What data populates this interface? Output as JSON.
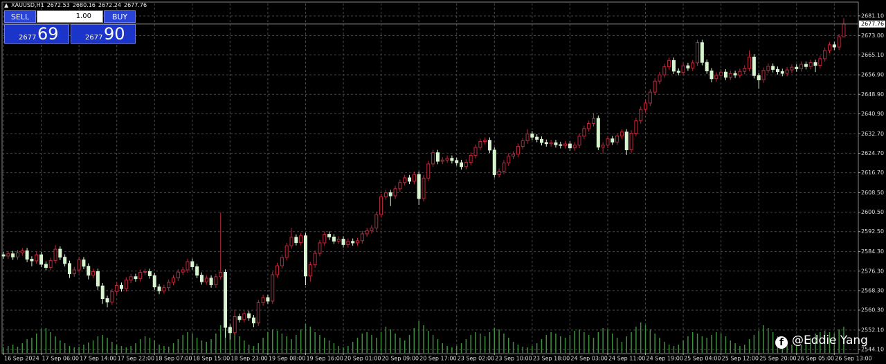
{
  "chart_data": {
    "type": "candlestick",
    "symbol": "XAUUSD,H1",
    "categories": [
      "16 Sep 2024",
      null,
      null,
      null,
      null,
      null,
      null,
      null,
      "17 Sep 06:00",
      null,
      null,
      null,
      null,
      null,
      null,
      null,
      "17 Sep 14:00",
      null,
      null,
      null,
      null,
      null,
      null,
      null,
      "17 Sep 22:00",
      null,
      null,
      null,
      null,
      null,
      null,
      null,
      "18 Sep 07:00",
      null,
      null,
      null,
      null,
      null,
      null,
      null,
      "18 Sep 15:00",
      null,
      null,
      null,
      null,
      null,
      null,
      null,
      "18 Sep 23:00",
      null,
      null,
      null,
      null,
      null,
      null,
      null,
      "19 Sep 08:00",
      null,
      null,
      null,
      null,
      null,
      null,
      null,
      "19 Sep 16:00",
      null,
      null,
      null,
      null,
      null,
      null,
      null,
      "20 Sep 01:00",
      null,
      null,
      null,
      null,
      null,
      null,
      null,
      "20 Sep 09:00",
      null,
      null,
      null,
      null,
      null,
      null,
      null,
      "20 Sep 17:00",
      null,
      null,
      null,
      null,
      null,
      null,
      null,
      "23 Sep 02:00",
      null,
      null,
      null,
      null,
      null,
      null,
      null,
      "23 Sep 10:00",
      null,
      null,
      null,
      null,
      null,
      null,
      null,
      "23 Sep 18:00",
      null,
      null,
      null,
      null,
      null,
      null,
      null,
      "24 Sep 03:00",
      null,
      null,
      null,
      null,
      null,
      null,
      null,
      "24 Sep 11:00",
      null,
      null,
      null,
      null,
      null,
      null,
      null,
      "24 Sep 19:00",
      null,
      null,
      null,
      null,
      null,
      null,
      null,
      "25 Sep 04:00",
      null,
      null,
      null,
      null,
      null,
      null,
      null,
      "25 Sep 12:00",
      null,
      null,
      null,
      null,
      null,
      null,
      null,
      "25 Sep 20:00",
      null,
      null,
      null,
      null,
      null,
      null,
      null,
      "26 Sep 05:00",
      null,
      null,
      null,
      null,
      null,
      null,
      null,
      "26 Sep 13:00",
      null,
      null
    ],
    "open": [
      2583.0,
      2582.5,
      2583.4,
      2582.1,
      2583.8,
      2584.6,
      2581.2,
      2580.5,
      2583.0,
      2579.1,
      2577.8,
      2580.6,
      2585.3,
      2582.0,
      2579.4,
      2575.2,
      2576.8,
      2580.9,
      2578.3,
      2574.6,
      2576.1,
      2570.2,
      2565.0,
      2563.6,
      2567.9,
      2570.4,
      2569.1,
      2572.6,
      2574.0,
      2573.2,
      2575.8,
      2576.1,
      2574.4,
      2569.8,
      2568.2,
      2569.5,
      2571.7,
      2573.5,
      2575.9,
      2576.8,
      2580.2,
      2578.1,
      2574.6,
      2571.9,
      2573.4,
      2570.7,
      2574.0,
      2575.8,
      2553.2,
      2551.0,
      2557.6,
      2556.4,
      2558.8,
      2557.1,
      2555.0,
      2563.3,
      2565.4,
      2564.0,
      2574.8,
      2578.5,
      2581.9,
      2586.7,
      2590.2,
      2588.0,
      2590.8,
      2574.3,
      2578.9,
      2583.6,
      2587.9,
      2591.4,
      2590.3,
      2588.6,
      2589.4,
      2587.2,
      2588.5,
      2587.9,
      2588.8,
      2591.6,
      2592.9,
      2594.0,
      2599.5,
      2606.8,
      2608.5,
      2607.2,
      2610.1,
      2612.7,
      2614.6,
      2613.2,
      2616.0,
      2606.1,
      2614.5,
      2620.3,
      2624.9,
      2621.4,
      2621.9,
      2622.6,
      2621.7,
      2620.8,
      2619.2,
      2621.0,
      2623.8,
      2627.1,
      2629.5,
      2630.0,
      2626.0,
      2615.9,
      2617.3,
      2620.7,
      2623.5,
      2624.3,
      2627.5,
      2629.8,
      2632.6,
      2631.3,
      2630.4,
      2629.1,
      2628.6,
      2629.0,
      2628.2,
      2627.9,
      2628.5,
      2626.9,
      2628.0,
      2631.7,
      2634.8,
      2636.9,
      2639.0,
      2627.2,
      2628.0,
      2630.6,
      2629.3,
      2631.8,
      2633.4,
      2626.1,
      2632.9,
      2638.0,
      2642.7,
      2645.3,
      2649.8,
      2654.3,
      2656.9,
      2660.2,
      2662.8,
      2658.4,
      2657.9,
      2660.6,
      2659.7,
      2661.8,
      2670.1,
      2662.0,
      2658.5,
      2655.3,
      2656.7,
      2658.0,
      2655.9,
      2657.4,
      2656.8,
      2658.3,
      2659.6,
      2664.2,
      2656.6,
      2654.8,
      2658.7,
      2660.4,
      2659.1,
      2658.2,
      2657.5,
      2658.9,
      2660.0,
      2659.4,
      2661.2,
      2660.3,
      2661.9,
      2660.8,
      2663.5,
      2666.9,
      2669.2,
      2668.3,
      2672.53
    ],
    "high": [
      2584.2,
      2584.6,
      2584.6,
      2585.0,
      2585.8,
      2585.8,
      2582.4,
      2584.2,
      2584.2,
      2580.3,
      2581.8,
      2587.0,
      2586.5,
      2583.2,
      2580.6,
      2578.0,
      2582.1,
      2582.1,
      2579.5,
      2577.3,
      2577.3,
      2571.4,
      2566.2,
      2569.1,
      2571.6,
      2571.6,
      2573.8,
      2575.2,
      2575.2,
      2577.0,
      2577.3,
      2577.3,
      2575.6,
      2571.0,
      2570.7,
      2572.9,
      2574.7,
      2577.1,
      2578.0,
      2581.4,
      2581.4,
      2579.3,
      2575.8,
      2574.6,
      2574.6,
      2575.2,
      2600.4,
      2577.0,
      2554.4,
      2560.5,
      2558.8,
      2560.0,
      2560.0,
      2558.3,
      2564.5,
      2566.6,
      2566.6,
      2576.0,
      2579.7,
      2583.1,
      2587.9,
      2594.0,
      2591.4,
      2592.0,
      2592.0,
      2580.1,
      2584.8,
      2589.1,
      2592.6,
      2592.6,
      2591.5,
      2590.6,
      2590.6,
      2589.7,
      2589.7,
      2590.0,
      2592.8,
      2594.1,
      2595.2,
      2600.7,
      2608.0,
      2609.7,
      2609.7,
      2611.3,
      2613.9,
      2615.8,
      2615.8,
      2617.2,
      2617.2,
      2615.7,
      2621.5,
      2626.1,
      2626.1,
      2623.1,
      2623.8,
      2623.8,
      2622.9,
      2622.0,
      2622.2,
      2625.0,
      2628.3,
      2630.7,
      2631.2,
      2631.2,
      2627.2,
      2618.5,
      2621.9,
      2624.7,
      2625.5,
      2628.7,
      2631.0,
      2634.6,
      2633.8,
      2632.5,
      2631.6,
      2630.3,
      2630.2,
      2630.2,
      2629.4,
      2629.7,
      2629.7,
      2629.2,
      2632.9,
      2636.0,
      2638.1,
      2641.3,
      2640.2,
      2629.2,
      2631.8,
      2631.8,
      2633.0,
      2634.6,
      2634.6,
      2634.1,
      2639.2,
      2643.9,
      2646.5,
      2651.0,
      2655.5,
      2658.1,
      2661.4,
      2664.0,
      2664.0,
      2659.6,
      2661.8,
      2661.8,
      2663.0,
      2671.3,
      2671.3,
      2663.2,
      2659.7,
      2657.9,
      2659.2,
      2659.2,
      2658.6,
      2658.6,
      2659.5,
      2660.8,
      2666.9,
      2665.4,
      2657.8,
      2659.9,
      2661.6,
      2661.6,
      2660.3,
      2659.4,
      2660.1,
      2661.2,
      2661.2,
      2662.4,
      2662.4,
      2663.1,
      2663.1,
      2664.7,
      2668.1,
      2670.4,
      2670.4,
      2673.7,
      2680.16
    ],
    "low": [
      2581.3,
      2581.3,
      2580.9,
      2580.9,
      2582.6,
      2580.0,
      2578.3,
      2579.3,
      2577.9,
      2576.6,
      2576.6,
      2579.4,
      2580.8,
      2578.2,
      2573.5,
      2574.0,
      2575.6,
      2577.1,
      2572.9,
      2573.4,
      2568.5,
      2562.8,
      2561.4,
      2562.4,
      2566.7,
      2567.9,
      2567.9,
      2571.4,
      2572.0,
      2572.0,
      2574.6,
      2573.2,
      2568.6,
      2566.8,
      2567.0,
      2568.3,
      2570.5,
      2572.3,
      2574.7,
      2575.6,
      2576.9,
      2573.4,
      2570.7,
      2570.7,
      2569.5,
      2569.5,
      2572.8,
      2549.0,
      2548.2,
      2549.8,
      2555.2,
      2555.2,
      2555.9,
      2553.2,
      2553.8,
      2562.1,
      2562.8,
      2562.8,
      2573.6,
      2577.3,
      2580.7,
      2585.5,
      2586.8,
      2586.8,
      2570.5,
      2572.0,
      2577.7,
      2582.4,
      2586.7,
      2589.1,
      2587.4,
      2587.4,
      2586.0,
      2586.0,
      2586.7,
      2586.7,
      2587.6,
      2590.4,
      2591.7,
      2592.8,
      2598.3,
      2605.6,
      2603.0,
      2606.0,
      2608.9,
      2611.5,
      2612.0,
      2612.0,
      2603.5,
      2604.9,
      2613.3,
      2619.1,
      2620.2,
      2620.2,
      2620.7,
      2620.5,
      2619.6,
      2618.0,
      2618.0,
      2619.8,
      2622.6,
      2625.9,
      2628.3,
      2624.8,
      2614.7,
      2614.7,
      2616.1,
      2619.5,
      2622.3,
      2623.1,
      2626.3,
      2628.6,
      2630.1,
      2629.2,
      2627.9,
      2627.4,
      2627.4,
      2627.0,
      2626.7,
      2626.7,
      2625.7,
      2625.7,
      2626.8,
      2630.5,
      2633.6,
      2635.7,
      2626.0,
      2624.5,
      2626.8,
      2628.1,
      2628.1,
      2630.6,
      2624.0,
      2624.9,
      2631.7,
      2636.8,
      2641.5,
      2644.1,
      2648.6,
      2653.1,
      2655.7,
      2659.0,
      2657.2,
      2656.7,
      2656.7,
      2658.5,
      2658.5,
      2660.6,
      2660.8,
      2657.3,
      2653.8,
      2654.1,
      2655.5,
      2654.7,
      2654.7,
      2655.6,
      2655.6,
      2657.1,
      2658.4,
      2655.4,
      2651.2,
      2653.6,
      2657.5,
      2657.9,
      2657.0,
      2656.3,
      2656.3,
      2657.7,
      2658.2,
      2658.2,
      2659.1,
      2659.1,
      2658.0,
      2659.6,
      2662.3,
      2665.7,
      2667.1,
      2667.1,
      2672.24
    ],
    "close": [
      2582.5,
      2583.4,
      2582.1,
      2583.8,
      2584.6,
      2581.2,
      2580.5,
      2583.0,
      2579.1,
      2577.8,
      2580.6,
      2585.3,
      2582.0,
      2579.4,
      2575.2,
      2576.8,
      2580.9,
      2578.3,
      2574.6,
      2576.1,
      2570.2,
      2565.0,
      2563.6,
      2567.9,
      2570.4,
      2569.1,
      2572.6,
      2574.0,
      2573.2,
      2575.8,
      2576.1,
      2574.4,
      2569.8,
      2568.2,
      2569.5,
      2571.7,
      2573.5,
      2575.9,
      2576.8,
      2580.2,
      2578.1,
      2574.6,
      2571.9,
      2573.4,
      2570.7,
      2574.0,
      2575.8,
      2553.2,
      2551.0,
      2557.6,
      2556.4,
      2558.8,
      2557.1,
      2555.0,
      2563.3,
      2565.4,
      2564.0,
      2574.8,
      2578.5,
      2581.9,
      2586.7,
      2590.2,
      2588.0,
      2590.8,
      2574.3,
      2578.9,
      2583.6,
      2587.9,
      2591.4,
      2590.3,
      2588.6,
      2589.4,
      2587.2,
      2588.5,
      2587.9,
      2588.8,
      2591.6,
      2592.9,
      2594.0,
      2599.5,
      2606.8,
      2608.5,
      2607.2,
      2610.1,
      2612.7,
      2614.6,
      2613.2,
      2616.0,
      2606.1,
      2614.5,
      2620.3,
      2624.9,
      2621.4,
      2621.9,
      2622.6,
      2621.7,
      2620.8,
      2619.2,
      2621.0,
      2623.8,
      2627.1,
      2629.5,
      2630.0,
      2626.0,
      2615.9,
      2617.3,
      2620.7,
      2623.5,
      2624.3,
      2627.5,
      2629.8,
      2632.6,
      2631.3,
      2630.4,
      2629.1,
      2628.6,
      2629.0,
      2628.2,
      2627.9,
      2628.5,
      2626.9,
      2628.0,
      2631.7,
      2634.8,
      2636.9,
      2639.0,
      2627.2,
      2628.0,
      2630.6,
      2629.3,
      2631.8,
      2633.4,
      2626.1,
      2632.9,
      2638.0,
      2642.7,
      2645.3,
      2649.8,
      2654.3,
      2656.9,
      2660.2,
      2662.8,
      2658.4,
      2657.9,
      2660.6,
      2659.7,
      2661.8,
      2670.1,
      2662.0,
      2658.5,
      2655.3,
      2656.7,
      2658.0,
      2655.9,
      2657.4,
      2656.8,
      2658.3,
      2659.6,
      2664.2,
      2656.6,
      2654.8,
      2658.7,
      2660.4,
      2659.1,
      2658.2,
      2657.5,
      2658.9,
      2660.0,
      2659.4,
      2661.2,
      2660.3,
      2661.9,
      2660.8,
      2663.5,
      2666.9,
      2669.2,
      2668.3,
      2672.53,
      2677.76
    ],
    "volume": [
      8,
      10,
      12,
      9,
      14,
      20,
      22,
      28,
      35,
      36,
      30,
      24,
      18,
      14,
      10,
      8,
      9,
      12,
      15,
      18,
      24,
      26,
      22,
      16,
      12,
      10,
      8,
      10,
      14,
      20,
      24,
      22,
      18,
      12,
      10,
      9,
      14,
      20,
      26,
      30,
      28,
      22,
      18,
      16,
      20,
      28,
      40,
      44,
      38,
      30,
      24,
      18,
      12,
      10,
      14,
      22,
      30,
      34,
      32,
      28,
      24,
      20,
      26,
      34,
      42,
      38,
      30,
      26,
      22,
      18,
      14,
      10,
      8,
      10,
      16,
      22,
      28,
      30,
      26,
      22,
      30,
      38,
      34,
      28,
      22,
      18,
      26,
      36,
      46,
      40,
      32,
      26,
      20,
      14,
      10,
      8,
      10,
      14,
      20,
      26,
      30,
      28,
      24,
      30,
      36,
      34,
      28,
      22,
      16,
      12,
      9,
      8,
      10,
      14,
      20,
      26,
      30,
      28,
      24,
      22,
      26,
      32,
      34,
      30,
      26,
      22,
      30,
      36,
      34,
      28,
      22,
      16,
      24,
      30,
      38,
      44,
      40,
      34,
      28,
      22,
      16,
      12,
      10,
      12,
      18,
      24,
      30,
      28,
      24,
      22,
      26,
      30,
      28,
      24,
      18,
      14,
      10,
      12,
      20,
      26,
      32,
      40,
      36,
      30,
      24,
      20,
      16,
      12,
      10,
      12,
      16,
      22,
      28,
      30,
      32,
      30,
      28,
      34,
      38
    ],
    "bull_color": "#c0283c",
    "bear_color": "#d8f5d0",
    "volume_color": "#3f8f3f",
    "ylim": [
      2542.7,
      2686.2
    ],
    "yticks": [
      {
        "value": 2544.1,
        "label": "2544.10"
      },
      {
        "value": 2552.1,
        "label": "2552.10"
      },
      {
        "value": 2560.3,
        "label": "2560.30"
      },
      {
        "value": 2568.3,
        "label": "2568.30"
      },
      {
        "value": 2576.3,
        "label": "2576.30"
      },
      {
        "value": 2584.3,
        "label": "2584.30"
      },
      {
        "value": 2592.5,
        "label": "2592.50"
      },
      {
        "value": 2600.5,
        "label": "2600.50"
      },
      {
        "value": 2608.5,
        "label": "2608.50"
      },
      {
        "value": 2616.7,
        "label": "2616.70"
      },
      {
        "value": 2624.7,
        "label": "2624.70"
      },
      {
        "value": 2632.7,
        "label": "2632.70"
      },
      {
        "value": 2640.9,
        "label": "2640.90"
      },
      {
        "value": 2648.9,
        "label": "2648.90"
      },
      {
        "value": 2656.9,
        "label": "2656.90"
      },
      {
        "value": 2665.1,
        "label": "2665.10"
      },
      {
        "value": 2673.0,
        "label": "2673.00"
      },
      {
        "value": 2681.1,
        "label": "2681.10"
      }
    ],
    "grid": true
  },
  "trade_panel": {
    "sell": "SELL",
    "buy": "BUY",
    "lots": "1.00",
    "sell_big": "2677",
    "sell_small": "69",
    "buy_big": "2677",
    "buy_small": "90"
  },
  "watermark": "@Eddie Yang"
}
